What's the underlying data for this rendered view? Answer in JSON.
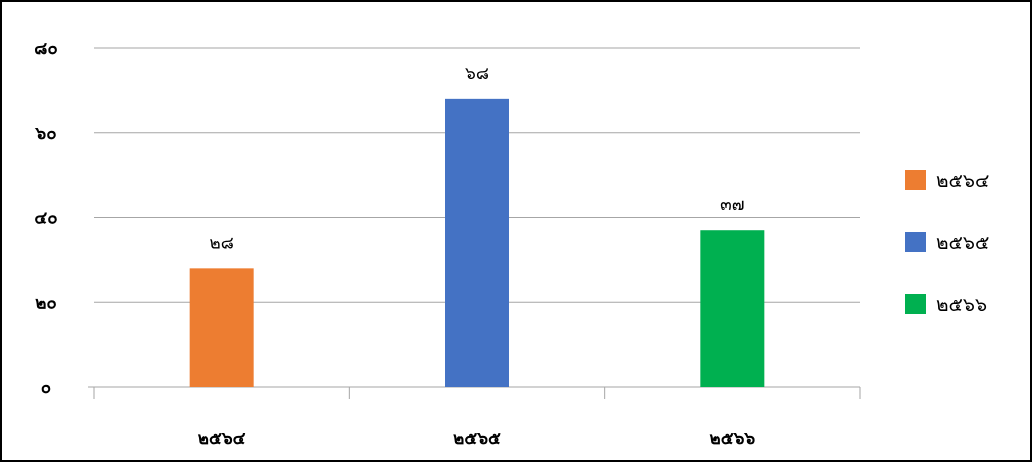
{
  "chart_data": {
    "type": "bar",
    "categories": [
      "๒๕๖๔",
      "๒๕๖๕",
      "๒๕๖๖"
    ],
    "values": [
      28,
      68,
      37
    ],
    "value_labels": [
      "๒๘",
      "๖๘",
      "๓๗"
    ],
    "colors": [
      "#ED7D31",
      "#4472C4",
      "#00B050"
    ],
    "ylim": [
      0,
      80
    ],
    "yticks": [
      0,
      20,
      40,
      60,
      80
    ],
    "ytick_labels": [
      "๐",
      "๒๐",
      "๔๐",
      "๖๐",
      "๘๐"
    ],
    "grid": true,
    "legend": {
      "placement": "right",
      "entries": [
        "๒๕๖๔",
        "๒๕๖๕",
        "๒๕๖๖"
      ]
    }
  }
}
